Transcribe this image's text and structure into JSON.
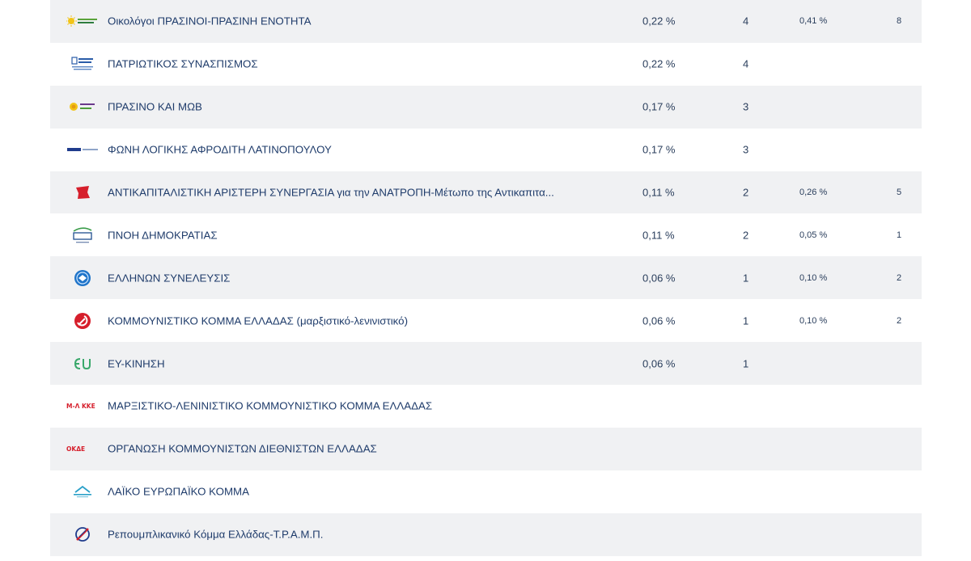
{
  "rows": [
    {
      "name": "Οικολόγοι ΠΡΑΣΙΝΟΙ-ΠΡΑΣΙΝΗ ΕΝΟΤΗΤΑ",
      "pct": "0,22 %",
      "seats": "4",
      "prev_pct": "0,41 %",
      "prev_seats": "8",
      "logo": "sun-green-logo-icon"
    },
    {
      "name": "ΠΑΤΡΙΩΤΙΚΟΣ ΣΥΝΑΣΠΙΣΜΟΣ",
      "pct": "0,22 %",
      "seats": "4",
      "prev_pct": "",
      "prev_seats": "",
      "logo": "patriotic-coalition-logo-icon"
    },
    {
      "name": "ΠΡΑΣΙΝΟ ΚΑΙ ΜΩΒ",
      "pct": "0,17 %",
      "seats": "3",
      "prev_pct": "",
      "prev_seats": "",
      "logo": "green-purple-logo-icon"
    },
    {
      "name": "ΦΩΝΗ ΛΟΓΙΚΗΣ ΑΦΡΟΔΙΤΗ ΛΑΤΙΝΟΠΟΥΛΟΥ",
      "pct": "0,17 %",
      "seats": "3",
      "prev_pct": "",
      "prev_seats": "",
      "logo": "voice-of-reason-logo-icon"
    },
    {
      "name": "ΑΝΤΙΚΑΠΙΤΑΛΙΣΤΙΚΗ ΑΡΙΣΤΕΡΗ ΣΥΝΕΡΓΑΣΙΑ για την ΑΝΑΤΡΟΠΗ-Μέτωπο της Αντικαπιτα...",
      "pct": "0,11 %",
      "seats": "2",
      "prev_pct": "0,26 %",
      "prev_seats": "5",
      "logo": "red-flag-logo-icon"
    },
    {
      "name": "ΠΝΟΗ ΔΗΜΟΚΡΑΤΙΑΣ",
      "pct": "0,11 %",
      "seats": "2",
      "prev_pct": "0,05 %",
      "prev_seats": "1",
      "logo": "pnoi-logo-icon"
    },
    {
      "name": "ΕΛΛΗΝΩΝ ΣΥΝΕΛΕΥΣΙΣ",
      "pct": "0,06 %",
      "seats": "1",
      "prev_pct": "0,10 %",
      "prev_seats": "2",
      "logo": "blue-circle-logo-icon"
    },
    {
      "name": "ΚΟΜΜΟΥΝΙΣΤΙΚΟ ΚΟΜΜΑ ΕΛΛΑΔΑΣ (μαρξιστικό-λενινιστικό)",
      "pct": "0,06 %",
      "seats": "1",
      "prev_pct": "0,10 %",
      "prev_seats": "2",
      "logo": "hammer-sickle-logo-icon"
    },
    {
      "name": "ΕΥ-ΚΙΝΗΣΗ",
      "pct": "0,06 %",
      "seats": "1",
      "prev_pct": "",
      "prev_seats": "",
      "logo": "eu-logo-icon"
    },
    {
      "name": "ΜΑΡΞΙΣΤΙΚΟ-ΛΕΝΙΝΙΣΤΙΚΟ ΚΟΜΜΟΥΝΙΣΤΙΚΟ ΚΟΜΜΑ ΕΛΛΑΔΑΣ",
      "pct": "",
      "seats": "",
      "prev_pct": "",
      "prev_seats": "",
      "logo": "ml-kke-logo-icon"
    },
    {
      "name": "ΟΡΓΑΝΩΣΗ ΚΟΜΜΟΥΝΙΣΤΩΝ ΔΙΕΘΝΙΣΤΩΝ ΕΛΛΑΔΑΣ",
      "pct": "",
      "seats": "",
      "prev_pct": "",
      "prev_seats": "",
      "logo": "okde-logo-icon"
    },
    {
      "name": "ΛΑΪΚΟ ΕΥΡΩΠΑΪΚΟ ΚΟΜΜΑ",
      "pct": "",
      "seats": "",
      "prev_pct": "",
      "prev_seats": "",
      "logo": "popular-european-logo-icon"
    },
    {
      "name": "Ρεπουμπλικανικό Κόμμα Ελλάδας-Τ.Ρ.Α.Μ.Π.",
      "pct": "",
      "seats": "",
      "prev_pct": "",
      "prev_seats": "",
      "logo": "republican-logo-icon"
    }
  ],
  "logo_texts": {
    "okde": "ΟΚΔΕ",
    "mlkke": "Μ-Λ ΚΚΕ"
  },
  "colors": {
    "row_alt": "#f0f1f3",
    "text": "#1f3c6b"
  }
}
